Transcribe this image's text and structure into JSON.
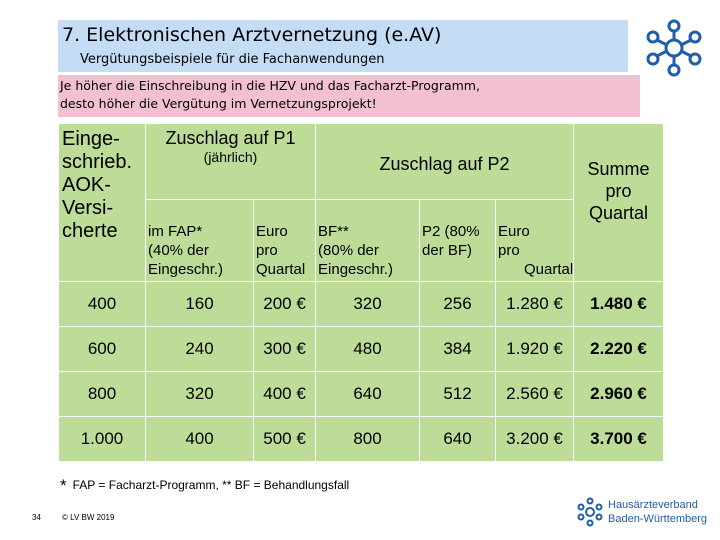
{
  "header": {
    "title": "7. Elektronischen Arztvernetzung (e.AV)",
    "subtitle": "Vergütungsbeispiele für die Fachanwendungen"
  },
  "note": {
    "line1": "Je höher die Einschreibung in die HZV und das Facharzt-Programm,",
    "line2": "desto höher die Vergütung im Vernetzungsprojekt!"
  },
  "table": {
    "col_left": [
      "Einge-",
      "schrieb.",
      "AOK-",
      "Versi-",
      "cherte"
    ],
    "p1_title": "Zuschlag auf P1",
    "p1_subtitle": "(jährlich)",
    "p2_title": "Zuschlag auf P2",
    "sum_header": [
      "Summe",
      "pro",
      "Quartal"
    ],
    "sub_fap": [
      "im FAP*",
      "(40% der",
      "Eingeschr.)"
    ],
    "sub_euro1": [
      "Euro",
      "pro",
      "Quartal"
    ],
    "sub_bf": [
      "BF**",
      "(80% der",
      "Eingeschr.)"
    ],
    "sub_p2": [
      "P2 (80%",
      "der BF)"
    ],
    "sub_euro2": [
      "Euro",
      "pro",
      "Quartal"
    ],
    "rows": [
      [
        "400",
        "160",
        "200 €",
        "320",
        "256",
        "1.280 €",
        "1.480 €"
      ],
      [
        "600",
        "240",
        "300 €",
        "480",
        "384",
        "1.920 €",
        "2.220 €"
      ],
      [
        "800",
        "320",
        "400 €",
        "640",
        "512",
        "2.560 €",
        "2.960 €"
      ],
      [
        "1.000",
        "400",
        "500 €",
        "800",
        "640",
        "3.200 €",
        "3.700 €"
      ]
    ]
  },
  "footnote": {
    "star": "*",
    "text": "FAP = Facharzt-Programm,  ** BF = Behandlungsfall"
  },
  "footer": {
    "page_number": "34",
    "copyright": "© LV BW 2019",
    "brand_line1": "Hausärzteverband",
    "brand_line2": "Baden-Württemberg"
  },
  "colors": {
    "title_bg": "#c5dcf5",
    "note_bg": "#f2c0d2",
    "table_bg": "#bcdc98",
    "brand_blue": "#1f5fa8"
  }
}
